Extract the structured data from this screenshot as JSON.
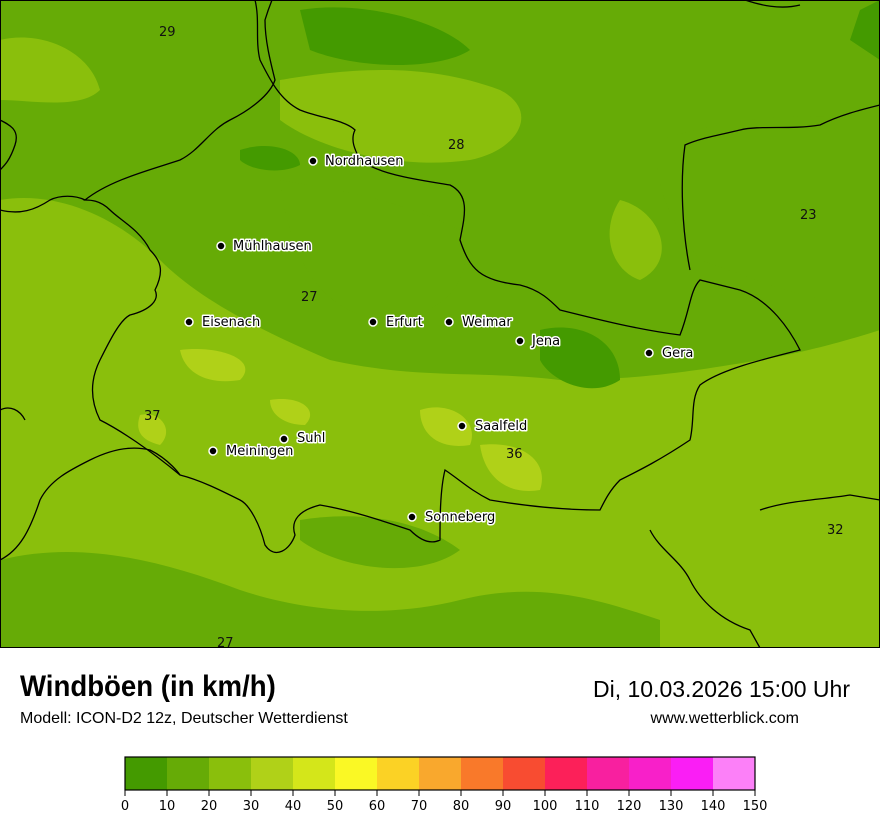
{
  "title": "Windböen (in km/h)",
  "subtitle": "Modell: ICON-D2 12z, Deutscher Wetterdienst",
  "datetime": "Di, 10.03.2026 15:00 Uhr",
  "website": "www.wetterblick.com",
  "cities": [
    {
      "name": "Nordhausen"
    },
    {
      "name": "Mühlhausen"
    },
    {
      "name": "Eisenach"
    },
    {
      "name": "Erfurt"
    },
    {
      "name": "Weimar"
    },
    {
      "name": "Jena"
    },
    {
      "name": "Gera"
    },
    {
      "name": "Saalfeld"
    },
    {
      "name": "Suhl"
    },
    {
      "name": "Meiningen"
    },
    {
      "name": "Sonneberg"
    }
  ],
  "max_values": [
    "29",
    "28",
    "23",
    "27",
    "37",
    "36",
    "32",
    "27"
  ],
  "legend": {
    "unit": "km/h",
    "ticks": [
      "0",
      "10",
      "20",
      "30",
      "40",
      "50",
      "60",
      "70",
      "80",
      "90",
      "100",
      "110",
      "120",
      "130",
      "140",
      "150"
    ],
    "colors": [
      "#449a00",
      "#66ab06",
      "#8abf0c",
      "#b0d118",
      "#d4e61a",
      "#faf825",
      "#fbd225",
      "#f9a82d",
      "#f9792a",
      "#f84c31",
      "#fc2059",
      "#f8209f",
      "#f820c9",
      "#fa1ef5",
      "#fc80f8"
    ]
  }
}
